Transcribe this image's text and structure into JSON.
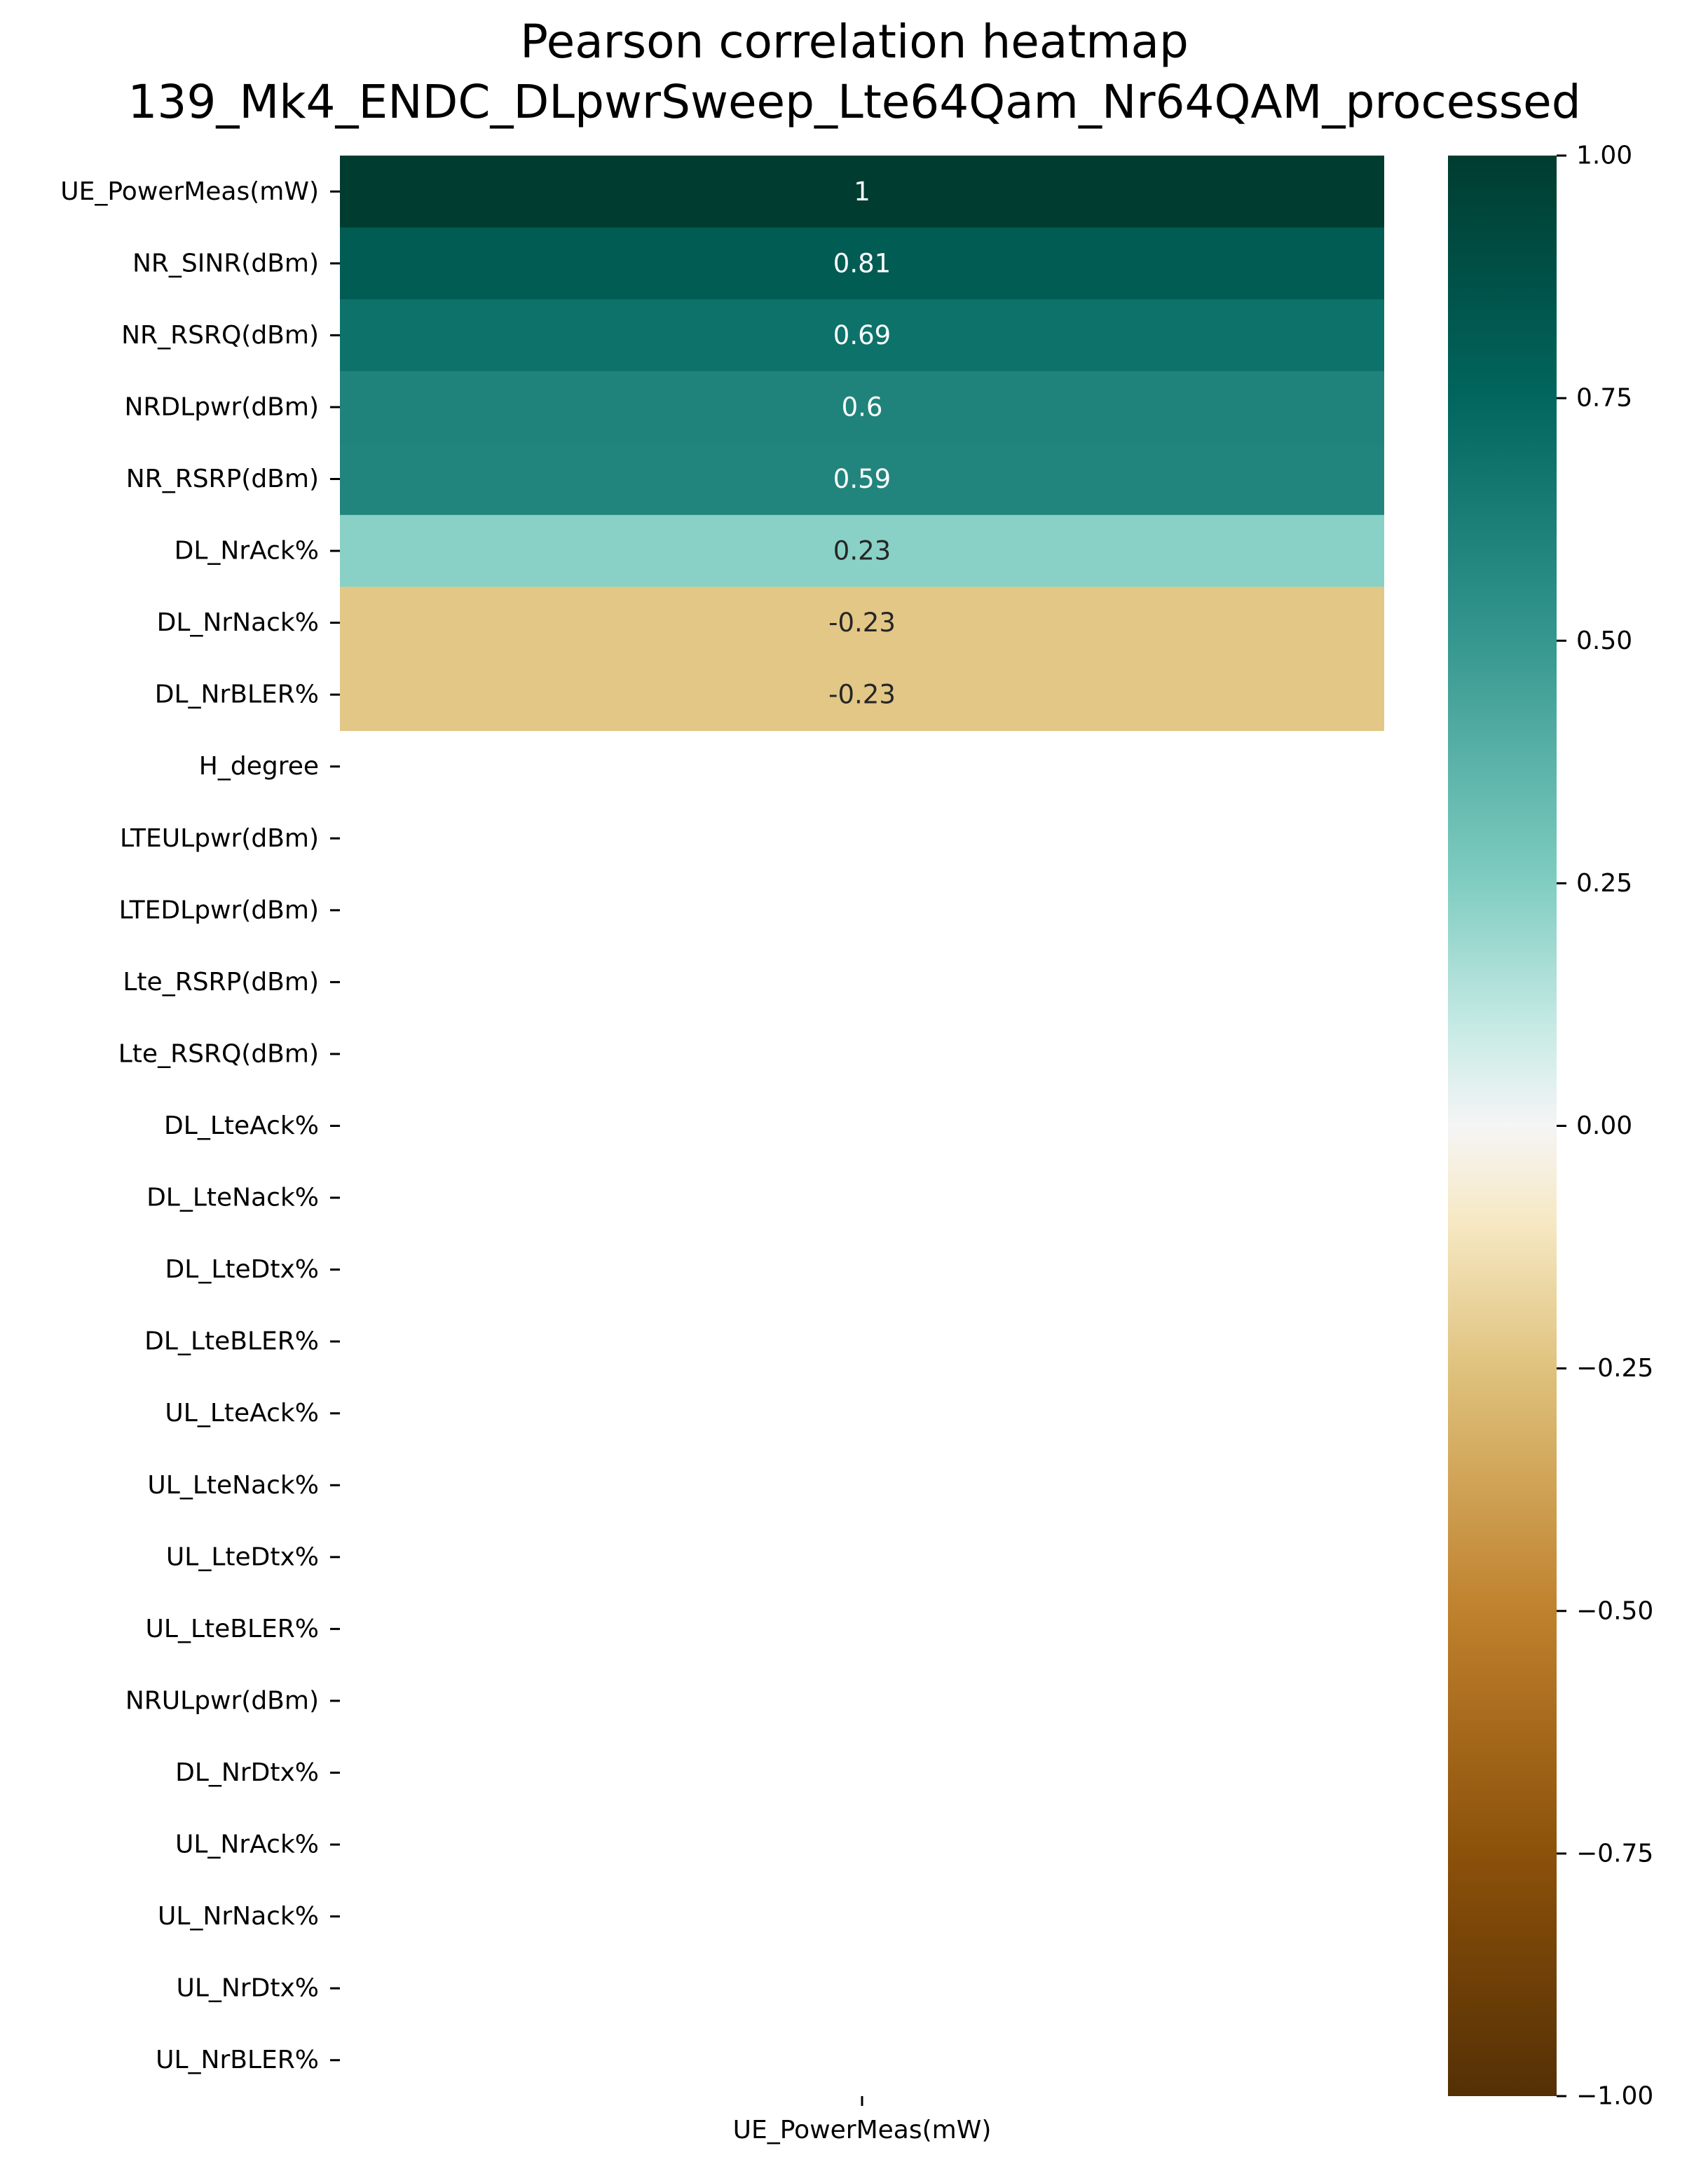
{
  "chart_data": {
    "type": "heatmap",
    "title_line1": "Pearson correlation heatmap",
    "title_line2": "139_Mk4_ENDC_DLpwrSweep_Lte64Qam_Nr64QAM_processed",
    "x_categories": [
      "UE_PowerMeas(mW)"
    ],
    "y_categories": [
      "UE_PowerMeas(mW)",
      "NR_SINR(dBm)",
      "NR_RSRQ(dBm)",
      "NRDLpwr(dBm)",
      "NR_RSRP(dBm)",
      "DL_NrAck%",
      "DL_NrNack%",
      "DL_NrBLER%",
      "H_degree",
      "LTEULpwr(dBm)",
      "LTEDLpwr(dBm) ",
      "Lte_RSRP(dBm)",
      "Lte_RSRQ(dBm)",
      "DL_LteAck%",
      "DL_LteNack%",
      "DL_LteDtx%",
      "DL_LteBLER%",
      "UL_LteAck%",
      "UL_LteNack%",
      "UL_LteDtx%",
      "UL_LteBLER%",
      "NRULpwr(dBm)",
      "DL_NrDtx%",
      "UL_NrAck%",
      "UL_NrNack%",
      "UL_NrDtx%",
      "UL_NrBLER%"
    ],
    "values": [
      1.0,
      0.81,
      0.69,
      0.6,
      0.59,
      0.23,
      -0.23,
      -0.23,
      null,
      null,
      null,
      null,
      null,
      null,
      null,
      null,
      null,
      null,
      null,
      null,
      null,
      null,
      null,
      null,
      null,
      null,
      null
    ],
    "value_labels": [
      "1",
      "0.81",
      "0.69",
      "0.6",
      "0.59",
      "0.23",
      "-0.23",
      "-0.23"
    ],
    "colormap": "BrBG",
    "vmin": -1.0,
    "vmax": 1.0,
    "colorbar_ticks": [
      1.0,
      0.75,
      0.5,
      0.25,
      0.0,
      -0.25,
      -0.5,
      -0.75,
      -1.0
    ],
    "colorbar_tick_labels": [
      "1.00",
      "0.75",
      "0.50",
      "0.25",
      "0.00",
      "−0.25",
      "−0.50",
      "−0.75",
      "−1.00"
    ],
    "colorbar_position": "right"
  }
}
